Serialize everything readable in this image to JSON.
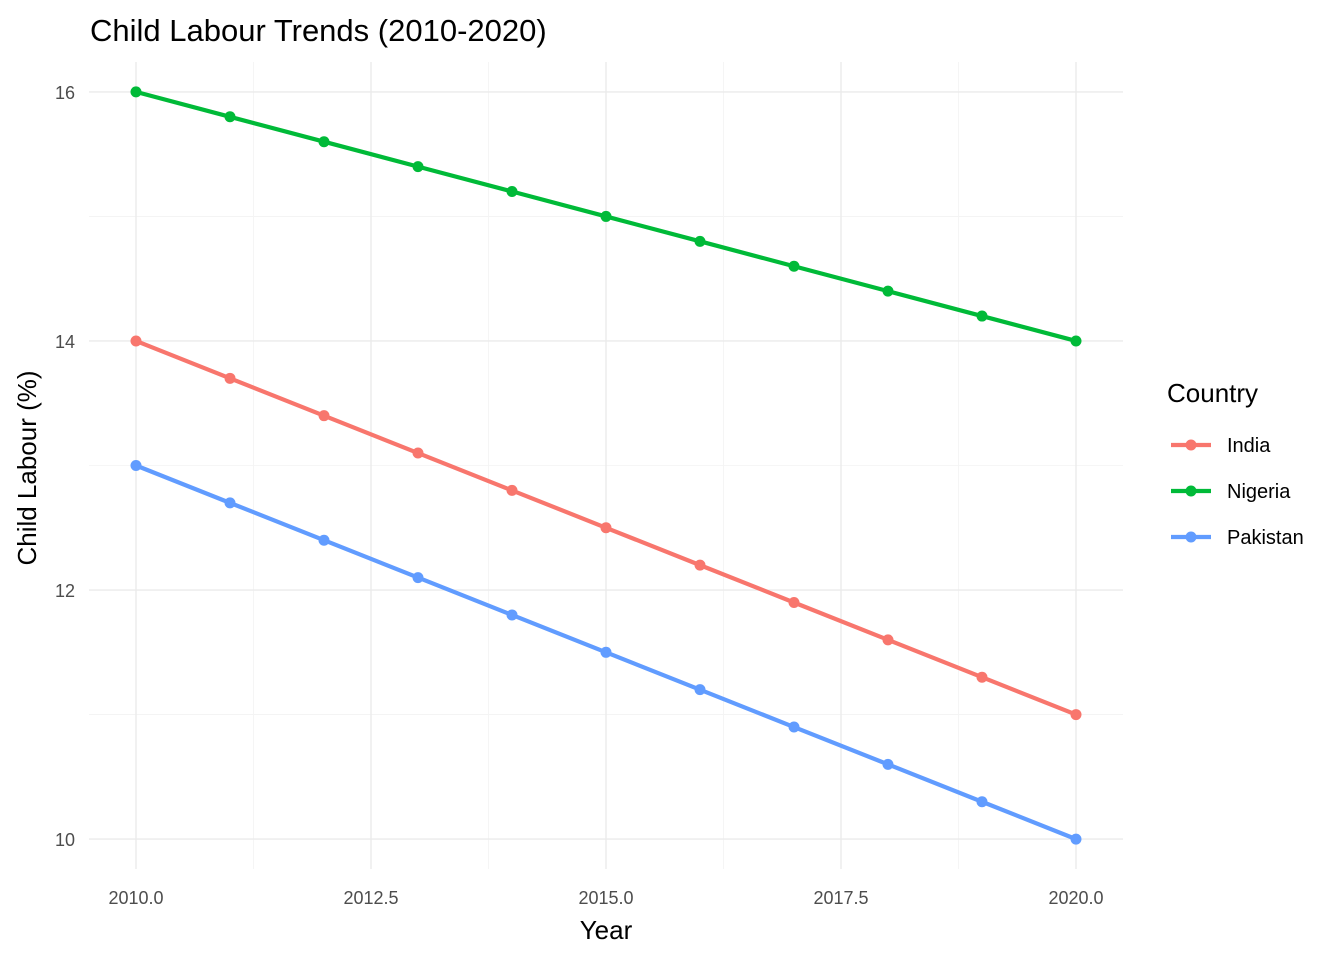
{
  "chart_data": {
    "type": "line",
    "title": "Child Labour Trends (2010-2020)",
    "xlabel": "Year",
    "ylabel": "Child Labour (%)",
    "x": [
      2010,
      2011,
      2012,
      2013,
      2014,
      2015,
      2016,
      2017,
      2018,
      2019,
      2020
    ],
    "xlim": [
      2009.5,
      2020.5
    ],
    "ylim": [
      9.76,
      16.24
    ],
    "x_ticks": [
      2010,
      2012.5,
      2015,
      2017.5,
      2020
    ],
    "x_tick_labels": [
      "2010.0",
      "2012.5",
      "2015.0",
      "2017.5",
      "2020.0"
    ],
    "y_ticks": [
      10,
      12,
      14,
      16
    ],
    "y_tick_labels": [
      "10",
      "12",
      "14",
      "16"
    ],
    "grid": true,
    "legend": {
      "title": "Country",
      "position": "right"
    },
    "series": [
      {
        "name": "India",
        "color": "#F8766D",
        "values": [
          14.0,
          13.7,
          13.4,
          13.1,
          12.8,
          12.5,
          12.2,
          11.9,
          11.6,
          11.3,
          11.0
        ]
      },
      {
        "name": "Nigeria",
        "color": "#00BA38",
        "values": [
          16.0,
          15.8,
          15.6,
          15.4,
          15.2,
          15.0,
          14.8,
          14.6,
          14.4,
          14.2,
          14.0
        ]
      },
      {
        "name": "Pakistan",
        "color": "#619CFF",
        "values": [
          13.0,
          12.7,
          12.4,
          12.1,
          11.8,
          11.5,
          11.2,
          10.9,
          10.6,
          10.3,
          10.0
        ]
      }
    ]
  }
}
